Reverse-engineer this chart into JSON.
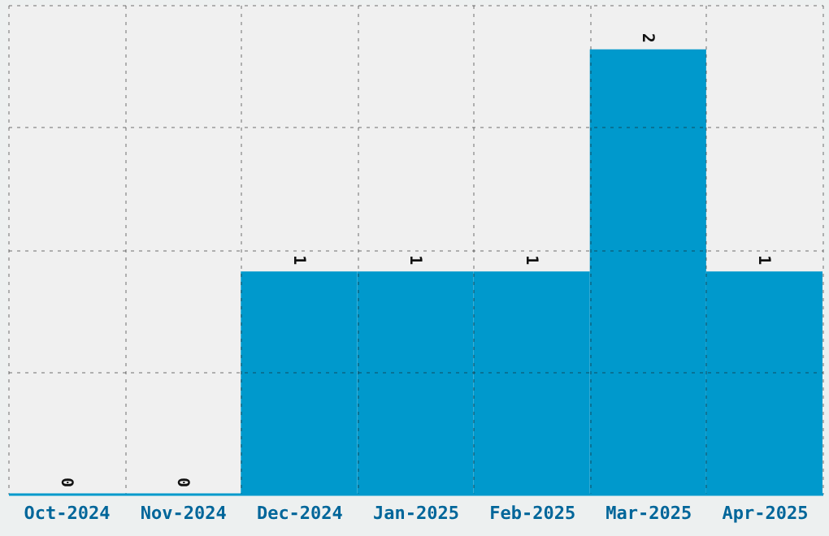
{
  "chart_data": {
    "type": "bar",
    "categories": [
      "Oct-2024",
      "Nov-2024",
      "Dec-2024",
      "Jan-2025",
      "Feb-2025",
      "Mar-2025",
      "Apr-2025"
    ],
    "values": [
      0,
      0,
      1,
      1,
      1,
      2,
      1
    ],
    "color": "#0099cc",
    "ylim": [
      0,
      2.2
    ],
    "yticks": [
      {
        "value": 0.55,
        "label": null
      },
      {
        "value": 1.1,
        "label": null
      },
      {
        "value": 1.65,
        "label": null
      },
      {
        "value": 2.2,
        "label": null
      }
    ],
    "grid": true,
    "tick_labels": "x",
    "data_labels": true
  }
}
